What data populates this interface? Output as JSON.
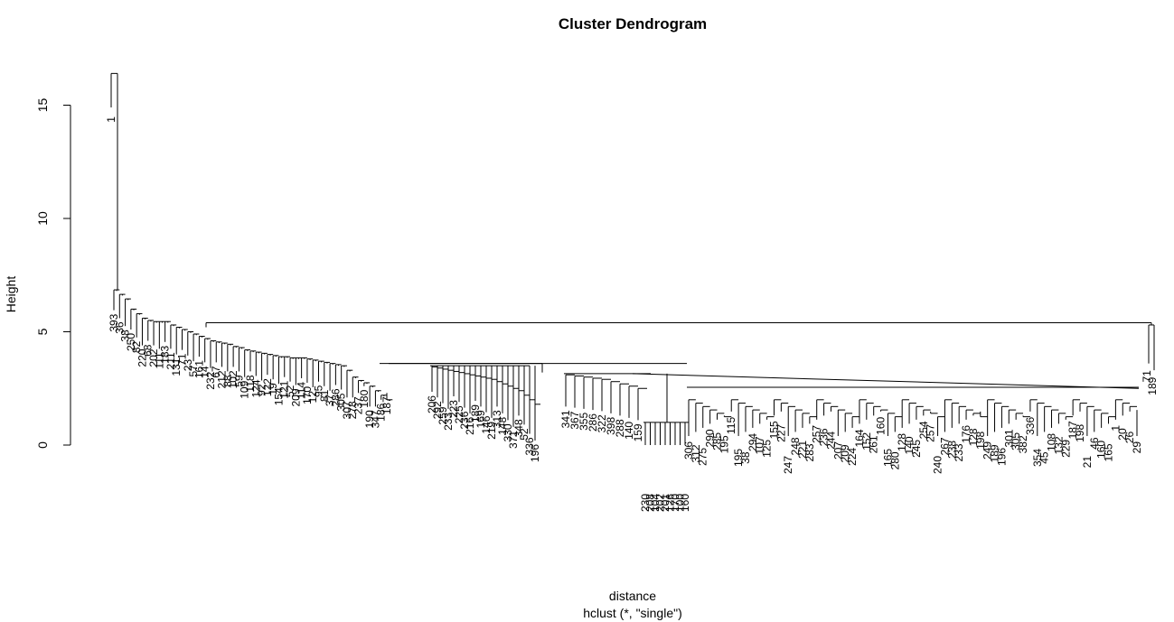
{
  "chart_data": {
    "type": "dendrogram",
    "title": "Cluster Dendrogram",
    "xlabel": "distance",
    "sub": "hclust (*, \"single\")",
    "ylabel": "Height",
    "ylim": [
      0,
      16.4
    ],
    "yticks": [
      0,
      5,
      10,
      15
    ],
    "grid": false,
    "outlier": {
      "label": "1",
      "height": 16.4
    },
    "main_tree": {
      "root_height": 6.85,
      "chain": [
        6.85,
        6.65,
        6.45,
        6.0,
        5.8,
        5.6,
        5.5,
        5.45,
        5.45,
        5.45,
        5.3,
        5.2,
        5.1,
        5.0,
        4.9,
        4.8,
        4.7,
        4.6,
        4.55,
        4.5,
        4.45,
        4.35,
        4.3,
        4.2,
        4.15,
        4.1,
        4.05,
        4.0,
        3.95,
        3.9,
        3.9,
        3.85,
        3.85,
        3.85,
        3.8,
        3.75,
        3.7,
        3.65,
        3.6,
        3.55,
        3.5,
        3.3,
        3.0,
        2.85,
        2.75,
        2.6,
        2.4,
        2.2,
        2.0
      ],
      "chain_leaves": [
        "393",
        "36",
        "38",
        "250",
        "82",
        "220",
        "68",
        "202",
        "111",
        "183",
        "211",
        "131",
        "71",
        "23",
        "57",
        "161",
        "14",
        "232",
        "67",
        "212",
        "88",
        "102",
        "59",
        "109",
        "118",
        "124",
        "92",
        "122",
        "19",
        "154",
        "121",
        "52",
        "209",
        "114",
        "170",
        "12",
        "95",
        "81",
        "37",
        "286",
        "305",
        "307",
        "278",
        "237",
        "180",
        "190",
        "347",
        "186",
        "187"
      ],
      "big_cluster_height": 5.4,
      "right_pair": {
        "height": 5.3,
        "leaves": [
          "71",
          "189"
        ]
      },
      "mid_block": {
        "height": 3.5,
        "chain": [
          3.45,
          3.4,
          3.35,
          3.3,
          3.25,
          3.2,
          3.15,
          3.1,
          3.05,
          3.0,
          2.95,
          2.9,
          2.8,
          2.7,
          2.6,
          2.5,
          2.4,
          2.2,
          2.0,
          1.8
        ],
        "chain_leaves": [
          "206",
          "292",
          "259",
          "233",
          "223",
          "225",
          "236",
          "216",
          "189",
          "169",
          "146",
          "219",
          "313",
          "148",
          "330",
          "371",
          "348",
          "52",
          "336",
          "196"
        ]
      },
      "block_b": {
        "height": 3.15,
        "chain": [
          3.1,
          3.05,
          3.0,
          2.95,
          2.9,
          2.8,
          2.7,
          2.6,
          2.5
        ],
        "chain_leaves": [
          "341",
          "367",
          "355",
          "286",
          "322",
          "398",
          "288",
          "140",
          "159"
        ],
        "dense_leaves": [
          "230",
          "208",
          "104",
          "202",
          "201",
          "126",
          "170",
          "100",
          "160"
        ]
      },
      "block_c": {
        "height": 2.55,
        "leaves": [
          "306",
          "312",
          "275",
          "290",
          "285",
          "195",
          "115",
          "195",
          "38",
          "294",
          "107",
          "125",
          "155",
          "227",
          "247",
          "248",
          "221",
          "283",
          "257",
          "236",
          "244",
          "207",
          "209",
          "224",
          "164",
          "152",
          "261",
          "160",
          "165",
          "280",
          "128",
          "140",
          "245",
          "254",
          "257",
          "240",
          "267",
          "238",
          "233",
          "176",
          "128",
          "198",
          "249",
          "189",
          "196",
          "301",
          "305",
          "382",
          "336",
          "354",
          "45",
          "108",
          "132",
          "229",
          "187",
          "198",
          "21",
          "46",
          "160",
          "165",
          "1",
          "20",
          "26",
          "29"
        ]
      }
    }
  }
}
